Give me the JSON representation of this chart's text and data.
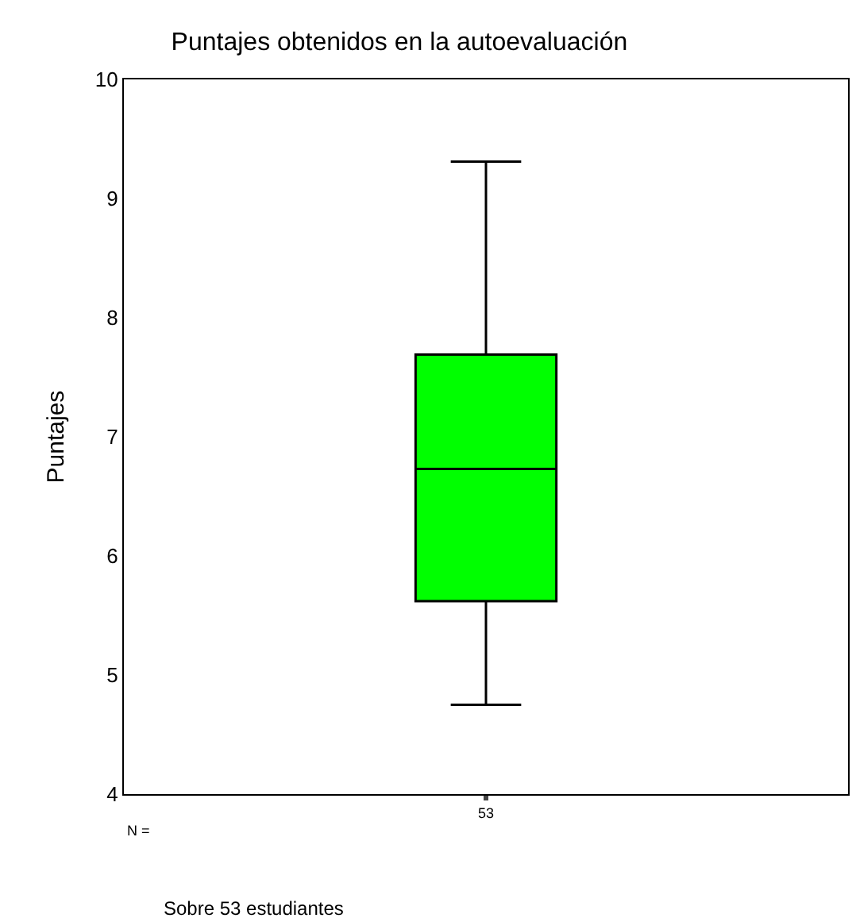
{
  "chart_data": {
    "type": "box",
    "title": "Puntajes obtenidos en la autoevaluación",
    "ylabel": "Puntajes",
    "categories": [
      "53"
    ],
    "boxes": [
      {
        "low": 4.75,
        "q1": 5.62,
        "median": 6.73,
        "q3": 7.69,
        "high": 9.31
      }
    ],
    "color": "#00ff00",
    "ylim": [
      4,
      10
    ],
    "yticks": [
      4,
      5,
      6,
      7,
      8,
      9,
      10
    ],
    "annotations": [
      "N =",
      "Sobre 53 estudiantes"
    ]
  }
}
